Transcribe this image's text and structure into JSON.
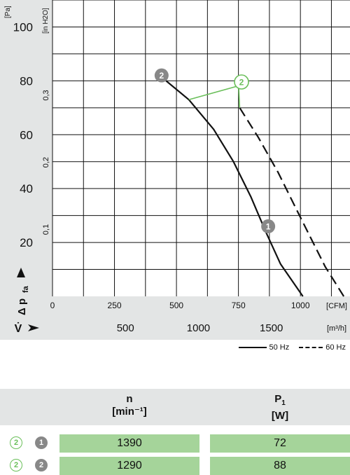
{
  "chart_data": {
    "type": "line",
    "y_axis_left": {
      "label": "Δ p_fa",
      "unit": "[Pa]",
      "ticks": [
        20,
        40,
        60,
        80,
        100
      ],
      "range": [
        0,
        110
      ]
    },
    "y_axis_inner": {
      "unit": "[in H2O]",
      "ticks": [
        "0,1",
        "0,2",
        "0,3"
      ]
    },
    "x_axis_cfm": {
      "unit": "[CFM]",
      "ticks": [
        0,
        250,
        500,
        750,
        1000
      ],
      "range": [
        0,
        1200
      ]
    },
    "x_axis_m3h": {
      "label": "V̇",
      "unit": "[m³/h]",
      "ticks": [
        500,
        1000,
        1500
      ]
    },
    "series": [
      {
        "name": "50 Hz",
        "style": "solid",
        "points": [
          [
            445,
            81
          ],
          [
            550,
            73
          ],
          [
            650,
            62
          ],
          [
            730,
            50
          ],
          [
            800,
            37
          ],
          [
            860,
            24
          ],
          [
            920,
            12
          ],
          [
            1010,
            0
          ]
        ]
      },
      {
        "name": "60 Hz",
        "style": "dashed",
        "points": [
          [
            755,
            70
          ],
          [
            830,
            59
          ],
          [
            910,
            46
          ],
          [
            980,
            33
          ],
          [
            1040,
            22
          ],
          [
            1100,
            11
          ],
          [
            1175,
            0
          ]
        ]
      }
    ],
    "markers": [
      {
        "label": "1",
        "x": 870,
        "y": 26
      },
      {
        "label": "2",
        "x": 440,
        "y": 82
      }
    ],
    "callout": {
      "label": "2"
    },
    "legend": [
      "50 Hz",
      "60 Hz"
    ],
    "grid": true
  },
  "legend": {
    "solid_label": "50 Hz",
    "dashed_label": "60 Hz"
  },
  "table": {
    "headers": {
      "n_symbol": "n",
      "n_unit": "[min⁻¹]",
      "p_symbol": "P",
      "p_sub": "1",
      "p_unit": "[W]"
    },
    "rows": [
      {
        "freq_marker": "2",
        "point_marker": "1",
        "n": "1390",
        "p": "72"
      },
      {
        "freq_marker": "2",
        "point_marker": "2",
        "n": "1290",
        "p": "88"
      }
    ]
  },
  "colors": {
    "grid": "#111111",
    "panel": "#e3e5e5",
    "green": "#6abf5a",
    "cell": "#a5d49a",
    "marker_grey": "#888888"
  }
}
